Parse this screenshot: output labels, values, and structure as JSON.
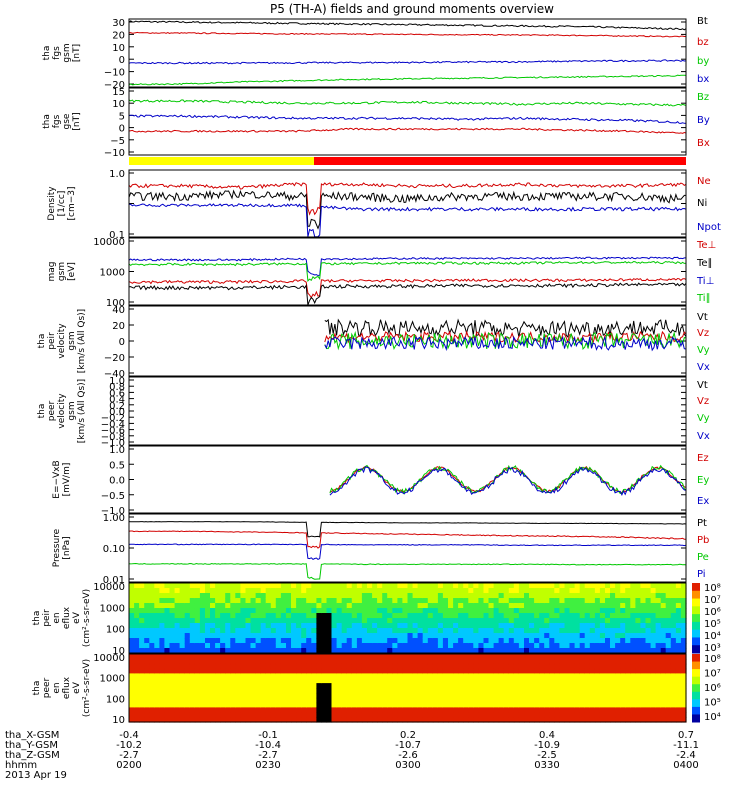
{
  "title": "P5 (TH-A) fields and ground moments overview",
  "colors": {
    "black": "#000000",
    "red": "#d20000",
    "green": "#00c800",
    "blue": "#0000c8",
    "yellow": "#ffff00",
    "bar_red": "#ff0000"
  },
  "time_axis": {
    "rows": [
      {
        "label": "tha_X-GSM",
        "values": [
          "-0.4",
          "-0.1",
          "0.2",
          "0.4",
          "0.7"
        ]
      },
      {
        "label": "tha_Y-GSM",
        "values": [
          "-10.2",
          "-10.4",
          "-10.7",
          "-10.9",
          "-11.1"
        ]
      },
      {
        "label": "tha_Z-GSM",
        "values": [
          "-2.7",
          "-2.7",
          "-2.6",
          "-2.5",
          "-2.4"
        ]
      },
      {
        "label": "hhmm",
        "values": [
          "0200",
          "0230",
          "0300",
          "0330",
          "0400"
        ]
      }
    ],
    "date": "2013 Apr 19"
  },
  "chart_data": [
    {
      "id": "fgs",
      "type": "line",
      "ylabel": [
        "tha",
        "fgs",
        "gsm",
        "[nT]"
      ],
      "yticks": [
        "30",
        "20",
        "10",
        "0",
        "−10",
        "−20"
      ],
      "ylim": [
        -22,
        32
      ],
      "series": [
        {
          "name": "Bt",
          "color": "black",
          "values": [
            30,
            29.5,
            29,
            28.5,
            28,
            27.5,
            27,
            26.5,
            26,
            25,
            24
          ],
          "noise": 0.6
        },
        {
          "name": "bz",
          "color": "red",
          "values": [
            21,
            20.8,
            20.5,
            20.2,
            20,
            19.8,
            19.5,
            19.3,
            19,
            18.5,
            18
          ],
          "noise": 0.4
        },
        {
          "name": "by",
          "color": "green",
          "values": [
            -20,
            -19.5,
            -18,
            -17,
            -16,
            -15.5,
            -15,
            -14.5,
            -14,
            -13.5,
            -13
          ],
          "noise": 0.5
        },
        {
          "name": "bx",
          "color": "blue",
          "values": [
            -3,
            -3,
            -3,
            -2.8,
            -2.6,
            -2.5,
            -2.2,
            -2,
            -1.5,
            -1.2,
            -1
          ],
          "noise": 0.6
        }
      ]
    },
    {
      "id": "fgs_gse",
      "type": "line",
      "ylabel": [
        "tha",
        "fgs",
        "gse",
        "[nT]"
      ],
      "yticks": [
        "15",
        "10",
        "5",
        "0",
        "−5",
        "−10"
      ],
      "ylim": [
        -14,
        17
      ],
      "series": [
        {
          "name": "Bz",
          "color": "green",
          "values": [
            11,
            11,
            10.5,
            10,
            10,
            10.5,
            10,
            9.5,
            10,
            9.5,
            9
          ],
          "noise": 0.5
        },
        {
          "name": "By",
          "color": "blue",
          "values": [
            4,
            4,
            3.5,
            3,
            3,
            3,
            2.5,
            3,
            2.5,
            2,
            1
          ],
          "noise": 0.5
        },
        {
          "name": "Bx",
          "color": "red",
          "values": [
            -3,
            -3,
            -3,
            -3,
            -2,
            -2,
            -2,
            -2,
            -2.5,
            -3,
            -4
          ],
          "noise": 0.4
        }
      ]
    },
    {
      "id": "density",
      "type": "line",
      "log": true,
      "ylabel": [
        "Density",
        "[1/cc]",
        "[cm−3]"
      ],
      "yticks": [
        "1.0",
        "",
        "0.1"
      ],
      "ylim": [
        0.1,
        1.4
      ],
      "gap_end": 0.31,
      "series": [
        {
          "name": "Ne",
          "color": "red",
          "values": [
            0.75,
            0.75,
            0.7,
            0.8,
            0.8,
            0.75,
            0.75,
            0.8,
            0.75,
            0.75,
            0.8
          ],
          "noise": 0.05
        },
        {
          "name": "Ni",
          "color": "black",
          "values": [
            0.5,
            0.5,
            0.55,
            0.5,
            0.5,
            0.45,
            0.5,
            0.5,
            0.5,
            0.5,
            0.45
          ],
          "noise": 0.08
        },
        {
          "name": "Npot",
          "color": "blue",
          "values": [
            0.35,
            0.35,
            0.35,
            0.35,
            0.3,
            0.3,
            0.3,
            0.3,
            0.3,
            0.3,
            0.3
          ],
          "noise": 0.02
        }
      ]
    },
    {
      "id": "temp",
      "type": "line",
      "log": true,
      "ylabel": [
        "mag",
        "gsm",
        "[eV]"
      ],
      "yticks": [
        "10000",
        "1000",
        "100"
      ],
      "ylim": [
        100,
        14000
      ],
      "gap_end": 0.31,
      "series": [
        {
          "name": "Te⊥",
          "color": "red",
          "values": [
            550,
            550,
            550,
            580,
            600,
            600,
            620,
            620,
            620,
            650,
            650
          ],
          "noise": 60
        },
        {
          "name": "Te∥",
          "color": "black",
          "values": [
            360,
            360,
            360,
            380,
            400,
            400,
            420,
            420,
            420,
            450,
            450
          ],
          "noise": 50
        },
        {
          "name": "Ti⊥",
          "color": "blue",
          "values": [
            2800,
            2800,
            2800,
            3000,
            3000,
            3100,
            3100,
            3100,
            3200,
            3200,
            3200
          ],
          "noise": 200
        },
        {
          "name": "Ti∥",
          "color": "green",
          "values": [
            2000,
            2000,
            2000,
            2100,
            2100,
            2200,
            2200,
            2200,
            2300,
            2300,
            2300
          ],
          "noise": 180
        }
      ]
    },
    {
      "id": "peir_vel",
      "type": "line",
      "ylabel": [
        "tha",
        "peir",
        "velocity",
        "gsm",
        "[km/s (All Qs)]"
      ],
      "yticks": [
        "40",
        "20",
        "0",
        "−20",
        "−40"
      ],
      "ylim": [
        -42,
        42
      ],
      "start": 0.35,
      "series": [
        {
          "name": "Vt",
          "color": "black",
          "values": [
            15,
            16,
            14,
            15,
            17,
            15,
            16,
            14,
            15,
            16,
            15
          ],
          "noise": 10
        },
        {
          "name": "Vz",
          "color": "red",
          "values": [
            5,
            5,
            5,
            4,
            5,
            5,
            5,
            5,
            4,
            5,
            5
          ],
          "noise": 6
        },
        {
          "name": "Vy",
          "color": "green",
          "values": [
            0,
            0,
            0,
            0,
            0,
            0,
            0,
            0,
            0,
            0,
            0
          ],
          "noise": 10
        },
        {
          "name": "Vx",
          "color": "blue",
          "values": [
            -3,
            -3,
            -3,
            -3,
            -3,
            -3,
            -3,
            -3,
            -3,
            -3,
            -3
          ],
          "noise": 8
        }
      ]
    },
    {
      "id": "peer_vel",
      "type": "line",
      "ylabel": [
        "tha",
        "peer",
        "velocity",
        "gsm",
        "[km/s (All Qs)]"
      ],
      "yticks": [
        "1.0",
        "0.8",
        "0.6",
        "0.4",
        "0.2",
        "0.0",
        "−0.2",
        "−0.4",
        "−0.6",
        "−0.8",
        "−1.0"
      ],
      "ylim": [
        -1,
        1
      ],
      "series": [
        {
          "name": "Vt",
          "color": "black",
          "values": []
        },
        {
          "name": "Vz",
          "color": "red",
          "values": []
        },
        {
          "name": "Vy",
          "color": "green",
          "values": []
        },
        {
          "name": "Vx",
          "color": "blue",
          "values": []
        }
      ]
    },
    {
      "id": "efield",
      "type": "line",
      "ylabel": [
        "E=−VxB",
        "[mV/m]"
      ],
      "yticks": [
        "1.0",
        "0.5",
        "0.0",
        "−0.5",
        "−1.0"
      ],
      "ylim": [
        -1,
        1
      ],
      "start": 0.36,
      "wave": true,
      "series": [
        {
          "name": "Ez",
          "color": "red",
          "values": [
            0,
            0,
            0,
            0,
            0,
            0,
            0,
            0,
            0,
            0,
            0
          ],
          "noise": 0.04
        },
        {
          "name": "Ey",
          "color": "green",
          "values": [
            0,
            0,
            0,
            0,
            0,
            0,
            0,
            0,
            0,
            0,
            0
          ],
          "noise": 0.08
        },
        {
          "name": "Ex",
          "color": "blue",
          "values": [
            -0.05,
            -0.05,
            -0.05,
            -0.05,
            -0.05,
            -0.05,
            -0.05,
            -0.05,
            -0.05,
            -0.05,
            -0.05
          ],
          "noise": 0.08
        }
      ]
    },
    {
      "id": "pressure",
      "type": "line",
      "log": true,
      "ylabel": [
        "Pressure",
        "[nPa]"
      ],
      "yticks": [
        "1.00",
        "0.10",
        "0.01"
      ],
      "ylim": [
        0.01,
        1.5
      ],
      "gap_end": 0.31,
      "series": [
        {
          "name": "Pt",
          "color": "black",
          "values": [
            0.85,
            0.85,
            0.85,
            0.82,
            0.8,
            0.78,
            0.78,
            0.76,
            0.75,
            0.74,
            0.72
          ],
          "noise": 0.01
        },
        {
          "name": "Pb",
          "color": "red",
          "values": [
            0.42,
            0.42,
            0.4,
            0.38,
            0.36,
            0.34,
            0.32,
            0.3,
            0.29,
            0.27,
            0.24
          ],
          "noise": 0.01
        },
        {
          "name": "Pe",
          "color": "green",
          "values": [
            0.038,
            0.038,
            0.038,
            0.038,
            0.037,
            0.037,
            0.037,
            0.037,
            0.036,
            0.036,
            0.036
          ],
          "noise": 0.001
        },
        {
          "name": "Pi",
          "color": "blue",
          "values": [
            0.16,
            0.16,
            0.16,
            0.16,
            0.155,
            0.155,
            0.155,
            0.15,
            0.15,
            0.15,
            0.15
          ],
          "noise": 0.004
        }
      ]
    },
    {
      "id": "peir_spec",
      "type": "heatmap",
      "ylabel": [
        "tha",
        "peir",
        "en",
        "eflux",
        "eV",
        "(cm²-s-sr-eV)"
      ],
      "yticks": [
        "10000",
        "1000",
        "100",
        "10"
      ],
      "colorbar_ticks": [
        "10⁸",
        "10⁷",
        "10⁶",
        "10⁵",
        "10⁴",
        "10³"
      ]
    },
    {
      "id": "peer_spec",
      "type": "heatmap",
      "ylabel": [
        "tha",
        "peer",
        "en",
        "eflux",
        "eV",
        "(cm²-s-sr-eV)"
      ],
      "yticks": [
        "10000",
        "1000",
        "100",
        "10"
      ],
      "colorbar_ticks": [
        "10⁸",
        "10⁷",
        "10⁶",
        "10⁵",
        "10⁴"
      ]
    }
  ]
}
